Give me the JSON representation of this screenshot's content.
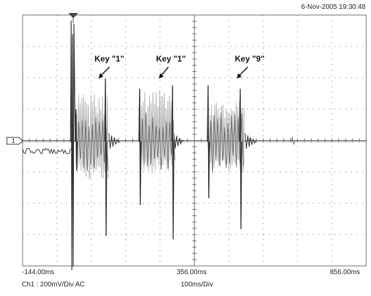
{
  "timestamp": "6-Nov-2005 19:30:48",
  "channel_marker": "1",
  "annotations": [
    {
      "text": "Key \"1\""
    },
    {
      "text": "Key \"1\""
    },
    {
      "text": "Key \"9\""
    }
  ],
  "time_axis": {
    "start": "-144.00ms",
    "mid": "356.00ms",
    "end": "856.00ms"
  },
  "channel_info": "Ch1 : 200mV/Div  AC",
  "timebase": "100ms/Div",
  "colors": {
    "grid": "#6a6a6a",
    "trace_dark": "#333333",
    "trace_light": "#b4b4b4",
    "text": "#222222"
  }
}
